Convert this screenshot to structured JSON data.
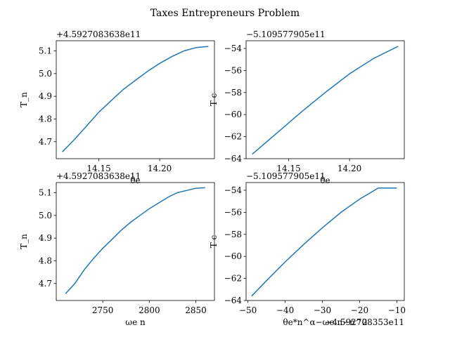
{
  "figure": {
    "title": "Taxes Entrepreneurs Problem"
  },
  "colors": {
    "line": "#1f77b4",
    "axes": "#000000",
    "background": "#ffffff"
  },
  "chart_data": [
    {
      "type": "line",
      "xlabel": "θe",
      "ylabel": "T_n",
      "offset_label": "+4.5927083638e11",
      "xlim": [
        14.115,
        14.245
      ],
      "ylim": [
        4.625,
        5.145
      ],
      "xticks": [
        14.15,
        14.2
      ],
      "xtick_labels": [
        "14.15",
        "14.20"
      ],
      "yticks": [
        4.7,
        4.8,
        4.9,
        5.0,
        5.1
      ],
      "ytick_labels": [
        "4.7",
        "4.8",
        "4.9",
        "5.0",
        "5.1"
      ],
      "x": [
        14.12,
        14.13,
        14.14,
        14.15,
        14.16,
        14.17,
        14.18,
        14.19,
        14.2,
        14.21,
        14.22,
        14.23,
        14.24
      ],
      "y": [
        4.655,
        4.71,
        4.77,
        4.83,
        4.88,
        4.93,
        4.97,
        5.01,
        5.045,
        5.075,
        5.1,
        5.115,
        5.12
      ]
    },
    {
      "type": "line",
      "xlabel": "θe",
      "ylabel": "T c",
      "offset_label": "−5.109577905e11",
      "xlim": [
        14.115,
        14.245
      ],
      "ylim": [
        -64.0,
        -53.3
      ],
      "xticks": [
        14.15,
        14.2
      ],
      "xtick_labels": [
        "14.15",
        "14.20"
      ],
      "yticks": [
        -64,
        -62,
        -60,
        -58,
        -56,
        -54
      ],
      "ytick_labels": [
        "−64",
        "−62",
        "−60",
        "−58",
        "−56",
        "−54"
      ],
      "x": [
        14.12,
        14.14,
        14.16,
        14.18,
        14.2,
        14.22,
        14.24
      ],
      "y": [
        -63.6,
        -61.7,
        -59.8,
        -58.0,
        -56.3,
        -54.9,
        -53.8
      ]
    },
    {
      "type": "line",
      "xlabel": "ωe n",
      "ylabel": "T_n",
      "offset_label": "+4.5927083638e11",
      "xlim": [
        2700,
        2870
      ],
      "ylim": [
        4.625,
        5.145
      ],
      "xticks": [
        2750,
        2800,
        2850
      ],
      "xtick_labels": [
        "2750",
        "2800",
        "2850"
      ],
      "yticks": [
        4.7,
        4.8,
        4.9,
        5.0,
        5.1
      ],
      "ytick_labels": [
        "4.7",
        "4.8",
        "4.9",
        "5.0",
        "5.1"
      ],
      "x": [
        2710,
        2720,
        2730,
        2740,
        2750,
        2760,
        2770,
        2780,
        2790,
        2800,
        2810,
        2820,
        2830,
        2840,
        2850,
        2860
      ],
      "y": [
        4.655,
        4.7,
        4.76,
        4.81,
        4.855,
        4.895,
        4.935,
        4.97,
        5.0,
        5.03,
        5.055,
        5.08,
        5.1,
        5.11,
        5.12,
        5.122
      ]
    },
    {
      "type": "line",
      "xlabel": "θe*n^α−ωe n−n^2",
      "ylabel": "T c",
      "offset_label": "−5.109577905e11",
      "x_offset_label": "−4.592708353e11",
      "xlim": [
        -50.5,
        -8
      ],
      "ylim": [
        -64.0,
        -53.3
      ],
      "xticks": [
        -50,
        -40,
        -30,
        -20,
        -10
      ],
      "xtick_labels": [
        "−50",
        "−40",
        "−30",
        "−20",
        "−10"
      ],
      "yticks": [
        -64,
        -62,
        -60,
        -58,
        -56,
        -54
      ],
      "ytick_labels": [
        "−64",
        "−62",
        "−60",
        "−58",
        "−56",
        "−54"
      ],
      "x": [
        -49,
        -45,
        -40,
        -35,
        -30,
        -25,
        -20,
        -15,
        -10
      ],
      "y": [
        -63.6,
        -62.2,
        -60.5,
        -58.9,
        -57.4,
        -56.0,
        -54.8,
        -53.8,
        -53.8
      ]
    }
  ]
}
